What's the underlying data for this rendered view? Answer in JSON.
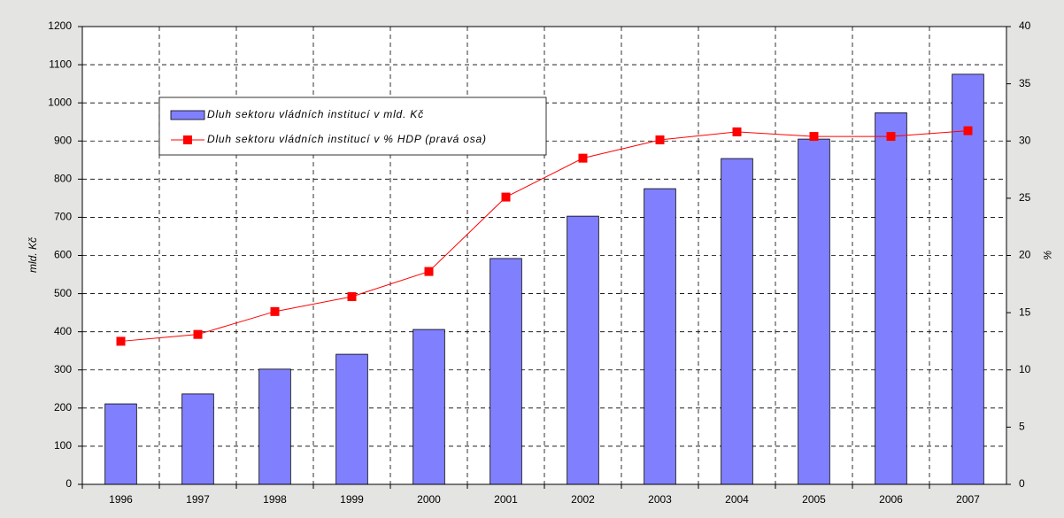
{
  "chart_data": {
    "type": "bar_line",
    "categories": [
      "1996",
      "1997",
      "1998",
      "1999",
      "2000",
      "2001",
      "2002",
      "2003",
      "2004",
      "2005",
      "2006",
      "2007"
    ],
    "series": [
      {
        "name": "Dluh sektoru vládních institucí v mld. Kč",
        "type": "bar",
        "color": "#8080ff",
        "values": [
          211,
          237,
          302,
          341,
          406,
          592,
          703,
          775,
          854,
          905,
          974,
          1075
        ]
      },
      {
        "name": "Dluh sektoru vládních institucí v % HDP (pravá osa)",
        "type": "line",
        "axis": "y2",
        "color": "#ff0000",
        "values": [
          12.5,
          13.1,
          15.1,
          16.4,
          18.6,
          25.1,
          28.5,
          30.1,
          30.8,
          30.4,
          30.4,
          30.9
        ]
      }
    ],
    "ylabel": "mld. Kč",
    "y2label": "%",
    "ylim": [
      0,
      1200
    ],
    "yticks": [
      0,
      100,
      200,
      300,
      400,
      500,
      600,
      700,
      800,
      900,
      1000,
      1100,
      1200
    ],
    "y2lim": [
      0,
      40
    ],
    "y2ticks": [
      0,
      5,
      10,
      15,
      20,
      25,
      30,
      35,
      40
    ],
    "grid": true,
    "legend": "upper left"
  }
}
